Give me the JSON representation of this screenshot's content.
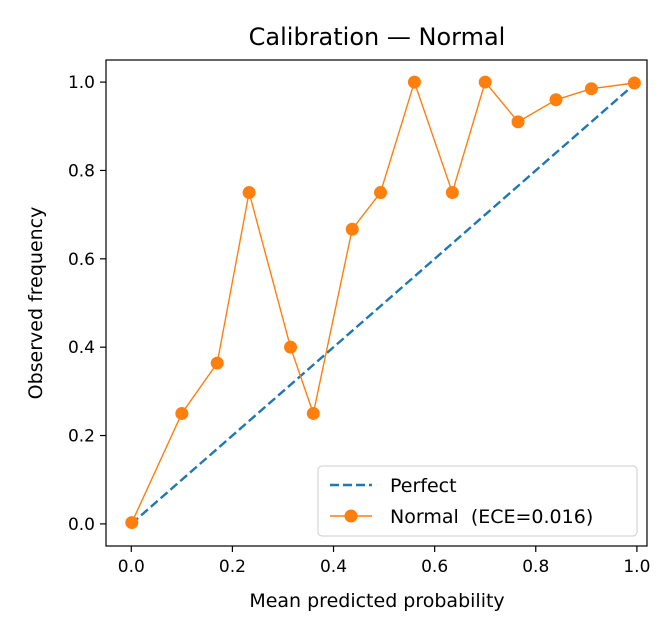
{
  "chart_data": {
    "type": "line",
    "title": "Calibration — Normal",
    "xlabel": "Mean predicted probability",
    "ylabel": "Observed frequency",
    "xlim": [
      -0.05,
      1.02
    ],
    "ylim": [
      -0.05,
      1.05
    ],
    "xticks": [
      "0.0",
      "0.2",
      "0.4",
      "0.6",
      "0.8",
      "1.0"
    ],
    "yticks": [
      "0.0",
      "0.2",
      "0.4",
      "0.6",
      "0.8",
      "1.0"
    ],
    "grid": false,
    "legend_position": "lower-right",
    "series": [
      {
        "name": "Perfect",
        "style": "dashed",
        "color": "#1f77b4",
        "x": [
          0.0,
          1.0
        ],
        "y": [
          0.0,
          1.0
        ]
      },
      {
        "name": "Normal  (ECE=0.016)",
        "style": "line-marker",
        "color": "#ff7f0e",
        "x": [
          0.001,
          0.1,
          0.17,
          0.233,
          0.315,
          0.36,
          0.437,
          0.493,
          0.56,
          0.635,
          0.7,
          0.765,
          0.84,
          0.91,
          0.995
        ],
        "y": [
          0.003,
          0.25,
          0.364,
          0.75,
          0.4,
          0.25,
          0.667,
          0.75,
          1.0,
          0.75,
          1.0,
          0.91,
          0.96,
          0.985,
          0.998
        ]
      }
    ]
  }
}
